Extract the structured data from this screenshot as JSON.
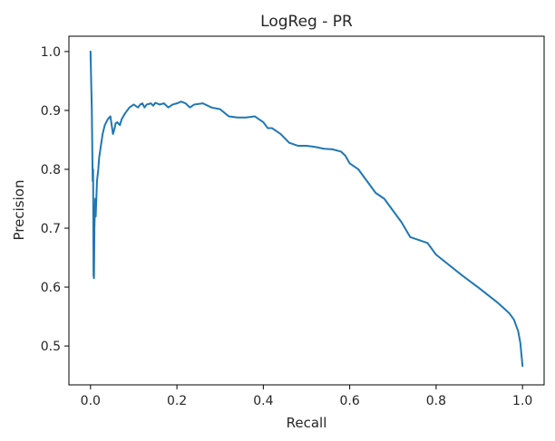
{
  "chart_data": {
    "type": "line",
    "title": "LogReg - PR",
    "xlabel": "Recall",
    "ylabel": "Precision",
    "xlim": [
      -0.05,
      1.05
    ],
    "ylim": [
      0.434,
      1.026
    ],
    "xticks": [
      0.0,
      0.2,
      0.4,
      0.6,
      0.8,
      1.0
    ],
    "xtick_labels": [
      "0.0",
      "0.2",
      "0.4",
      "0.6",
      "0.8",
      "1.0"
    ],
    "yticks": [
      0.5,
      0.6,
      0.7,
      0.8,
      0.9,
      1.0
    ],
    "ytick_labels": [
      "0.5",
      "0.6",
      "0.7",
      "0.8",
      "0.9",
      "1.0"
    ],
    "grid": false,
    "color": "#1f77b4",
    "series": [
      {
        "x": [
          0.0,
          0.003,
          0.005,
          0.006,
          0.007,
          0.008,
          0.009,
          0.011,
          0.012,
          0.015,
          0.018,
          0.02,
          0.024,
          0.028,
          0.033,
          0.04,
          0.046,
          0.052,
          0.056,
          0.058,
          0.062,
          0.068,
          0.072,
          0.08,
          0.09,
          0.1,
          0.11,
          0.115,
          0.12,
          0.125,
          0.13,
          0.14,
          0.145,
          0.15,
          0.16,
          0.17,
          0.18,
          0.19,
          0.2,
          0.21,
          0.22,
          0.23,
          0.24,
          0.26,
          0.28,
          0.3,
          0.32,
          0.34,
          0.36,
          0.38,
          0.39,
          0.4,
          0.41,
          0.42,
          0.44,
          0.46,
          0.48,
          0.5,
          0.52,
          0.54,
          0.56,
          0.58,
          0.59,
          0.6,
          0.62,
          0.64,
          0.66,
          0.68,
          0.7,
          0.71,
          0.72,
          0.74,
          0.76,
          0.78,
          0.8,
          0.86,
          0.9,
          0.94,
          0.96,
          0.97,
          0.98,
          0.99,
          0.995,
          1.0
        ],
        "y": [
          1.0,
          0.9,
          0.78,
          0.8,
          0.62,
          0.615,
          0.7,
          0.75,
          0.72,
          0.78,
          0.8,
          0.82,
          0.84,
          0.86,
          0.875,
          0.885,
          0.89,
          0.86,
          0.87,
          0.878,
          0.88,
          0.875,
          0.885,
          0.895,
          0.905,
          0.91,
          0.905,
          0.91,
          0.912,
          0.905,
          0.91,
          0.912,
          0.908,
          0.913,
          0.91,
          0.912,
          0.905,
          0.91,
          0.912,
          0.915,
          0.912,
          0.905,
          0.91,
          0.912,
          0.905,
          0.902,
          0.89,
          0.888,
          0.888,
          0.89,
          0.885,
          0.88,
          0.87,
          0.87,
          0.86,
          0.845,
          0.84,
          0.84,
          0.838,
          0.835,
          0.834,
          0.83,
          0.823,
          0.81,
          0.8,
          0.78,
          0.76,
          0.75,
          0.73,
          0.72,
          0.71,
          0.685,
          0.68,
          0.675,
          0.655,
          0.62,
          0.598,
          0.575,
          0.562,
          0.555,
          0.545,
          0.525,
          0.505,
          0.466
        ]
      }
    ]
  }
}
